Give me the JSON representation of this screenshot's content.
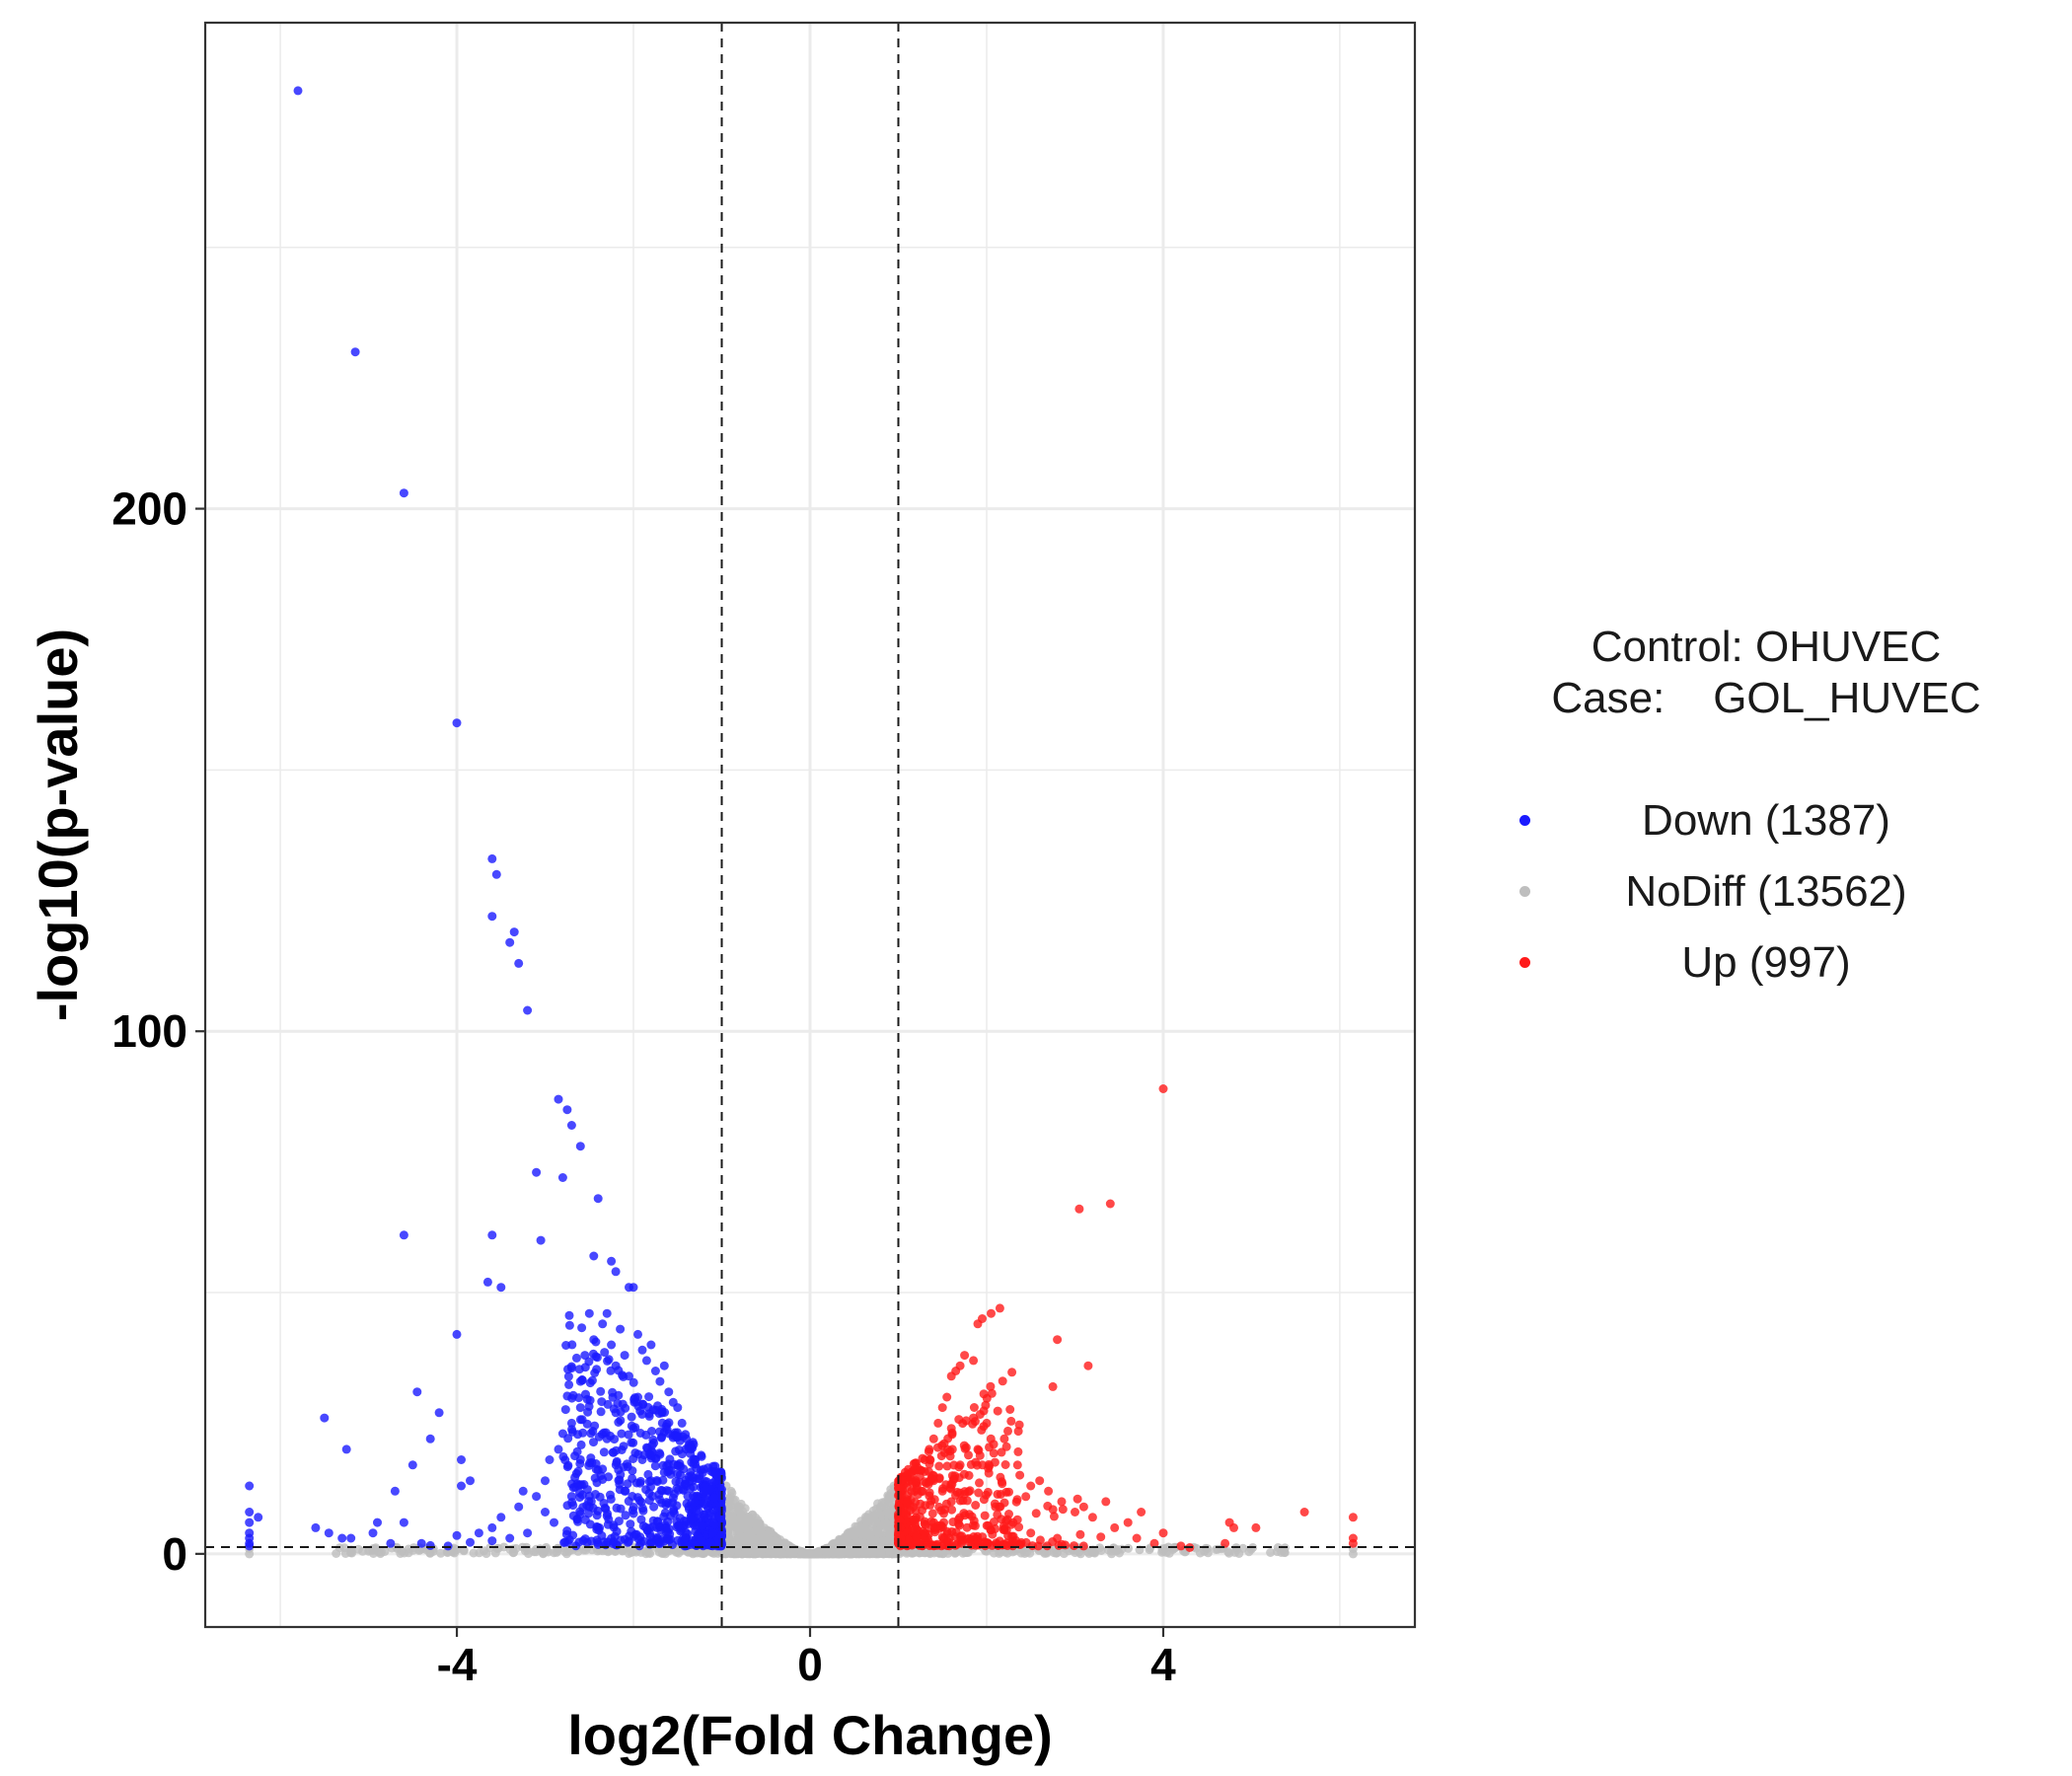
{
  "chart_data": {
    "type": "scatter",
    "title": "",
    "xlabel": "log2(Fold Change)",
    "ylabel": "-log10(p-value)",
    "xlim": [
      -6.85,
      6.85
    ],
    "ylim": [
      -14,
      293
    ],
    "xticks": [
      -4,
      0,
      4
    ],
    "xtick_labels": [
      "-4",
      "0",
      "4"
    ],
    "yticks": [
      0,
      100,
      200
    ],
    "ytick_labels": [
      "0",
      "100",
      "200"
    ],
    "grid": true,
    "threshold_lines": {
      "x": [
        -1,
        1
      ],
      "y": [
        1.3
      ]
    },
    "legend": {
      "title": "Control: OHUVEC\nCase:    GOL_HUVEC",
      "position": "right"
    },
    "series": [
      {
        "name": "Down (1387)",
        "color": "#1a1aff",
        "count": 1387,
        "points": [
          [
            -5.8,
            280
          ],
          [
            -5.15,
            230
          ],
          [
            -4.6,
            203
          ],
          [
            -4.0,
            159
          ],
          [
            -3.6,
            133
          ],
          [
            -3.55,
            130
          ],
          [
            -3.6,
            122
          ],
          [
            -3.35,
            119
          ],
          [
            -3.4,
            117
          ],
          [
            -3.3,
            113
          ],
          [
            -3.2,
            104
          ],
          [
            -2.85,
            87
          ],
          [
            -2.75,
            85
          ],
          [
            -2.7,
            82
          ],
          [
            -2.6,
            78
          ],
          [
            -3.1,
            73
          ],
          [
            -2.8,
            72
          ],
          [
            -2.4,
            68
          ],
          [
            -4.6,
            61
          ],
          [
            -3.6,
            61
          ],
          [
            -3.05,
            60
          ],
          [
            -2.45,
            57
          ],
          [
            -2.25,
            56
          ],
          [
            -2.2,
            54
          ],
          [
            -3.65,
            52
          ],
          [
            -3.5,
            51
          ],
          [
            -2.05,
            51
          ],
          [
            -2.0,
            51
          ],
          [
            -4.0,
            42
          ],
          [
            -5.5,
            26
          ],
          [
            -5.25,
            20
          ],
          [
            -4.45,
            31
          ],
          [
            -4.2,
            27
          ],
          [
            -4.3,
            22
          ],
          [
            -3.95,
            18
          ],
          [
            -3.85,
            14
          ],
          [
            -4.5,
            17
          ],
          [
            -3.95,
            13
          ],
          [
            -4.7,
            12
          ],
          [
            -6.35,
            13
          ],
          [
            -6.35,
            8
          ],
          [
            -6.35,
            6
          ],
          [
            -6.35,
            4
          ],
          [
            -6.35,
            3
          ],
          [
            -6.35,
            2
          ],
          [
            -6.35,
            1.5
          ],
          [
            -6.25,
            7
          ],
          [
            -5.6,
            5
          ],
          [
            -5.45,
            4
          ],
          [
            -5.3,
            3
          ],
          [
            -5.2,
            3
          ],
          [
            -4.9,
            6
          ],
          [
            -4.95,
            4
          ],
          [
            -4.75,
            2
          ],
          [
            -4.6,
            6
          ],
          [
            -4.4,
            2
          ],
          [
            -4.3,
            1.6
          ],
          [
            -4.1,
            1.5
          ],
          [
            -3.85,
            2.2
          ],
          [
            -3.75,
            4
          ],
          [
            -3.6,
            5
          ],
          [
            -3.5,
            7
          ],
          [
            -3.4,
            3
          ],
          [
            -3.3,
            9
          ],
          [
            -3.25,
            12
          ],
          [
            -3.1,
            11
          ],
          [
            -3.0,
            14
          ],
          [
            -2.95,
            18
          ],
          [
            -2.85,
            20
          ],
          [
            -2.8,
            23
          ],
          [
            -2.7,
            25
          ],
          [
            -2.6,
            28
          ],
          [
            -2.6,
            33
          ],
          [
            -2.55,
            38
          ],
          [
            -2.5,
            46
          ],
          [
            -2.45,
            41
          ],
          [
            -2.35,
            44
          ],
          [
            -2.3,
            46
          ],
          [
            -2.25,
            40
          ],
          [
            -2.2,
            36
          ],
          [
            -2.15,
            43
          ],
          [
            -2.1,
            38
          ],
          [
            -2.05,
            34
          ],
          [
            -1.95,
            42
          ],
          [
            -1.9,
            39
          ],
          [
            -1.85,
            37
          ],
          [
            -1.8,
            40
          ],
          [
            -1.75,
            35
          ],
          [
            -1.7,
            33
          ],
          [
            -1.65,
            36
          ],
          [
            -1.6,
            31
          ],
          [
            -1.55,
            29
          ],
          [
            -1.5,
            28
          ],
          [
            -1.45,
            25
          ],
          [
            -1.4,
            22
          ],
          [
            -1.35,
            20
          ],
          [
            -1.3,
            18
          ],
          [
            -1.25,
            15
          ],
          [
            -1.2,
            12
          ],
          [
            -1.15,
            9
          ],
          [
            -1.1,
            6
          ],
          [
            -1.05,
            3
          ],
          [
            -2.9,
            6
          ],
          [
            -3.0,
            8
          ],
          [
            -3.2,
            4
          ],
          [
            -3.6,
            2.5
          ],
          [
            -4.0,
            3.5
          ],
          [
            -2.7,
            11
          ],
          [
            -2.4,
            16
          ],
          [
            -2.3,
            22
          ],
          [
            -2.2,
            27
          ],
          [
            -2.0,
            24
          ],
          [
            -1.9,
            18
          ],
          [
            -1.8,
            14
          ],
          [
            -1.7,
            19
          ],
          [
            -1.6,
            23
          ],
          [
            -1.5,
            17
          ],
          [
            -1.4,
            13
          ],
          [
            -1.3,
            10
          ],
          [
            -1.2,
            7
          ],
          [
            -1.1,
            4
          ],
          [
            -2.5,
            9
          ],
          [
            -2.1,
            12
          ],
          [
            -1.95,
            30
          ],
          [
            -1.6,
            12
          ]
        ]
      },
      {
        "name": "NoDiff (13562)",
        "color": "#bebebe",
        "count": 13562,
        "points": [
          [
            -0.95,
            13
          ],
          [
            -0.9,
            11
          ],
          [
            -0.8,
            9
          ],
          [
            -0.7,
            7
          ],
          [
            -0.6,
            5
          ],
          [
            -0.5,
            3.5
          ],
          [
            -0.4,
            2.5
          ],
          [
            -0.3,
            1.5
          ],
          [
            -0.2,
            1
          ],
          [
            -0.1,
            0.5
          ],
          [
            0,
            0
          ],
          [
            0.1,
            0.5
          ],
          [
            0.2,
            1
          ],
          [
            0.3,
            1.5
          ],
          [
            0.4,
            2.5
          ],
          [
            0.5,
            3.5
          ],
          [
            0.6,
            5
          ],
          [
            0.7,
            7
          ],
          [
            0.8,
            9
          ],
          [
            0.9,
            11
          ],
          [
            0.95,
            13
          ],
          [
            -6.35,
            0
          ],
          [
            -6.35,
            1
          ],
          [
            -5.0,
            0.5
          ],
          [
            -4.0,
            0.8
          ],
          [
            -3.0,
            0.5
          ],
          [
            -2.0,
            0.6
          ],
          [
            -1.5,
            0.4
          ],
          [
            2.0,
            0.5
          ],
          [
            3.0,
            0.7
          ],
          [
            4.0,
            0.5
          ],
          [
            4.5,
            1
          ],
          [
            6.15,
            0
          ],
          [
            6.15,
            1
          ]
        ]
      },
      {
        "name": "Up (997)",
        "color": "#ff1a1a",
        "count": 997,
        "points": [
          [
            4.0,
            89
          ],
          [
            3.4,
            67
          ],
          [
            3.05,
            66
          ],
          [
            2.15,
            47
          ],
          [
            2.05,
            46
          ],
          [
            1.95,
            45
          ],
          [
            1.9,
            44
          ],
          [
            2.8,
            41
          ],
          [
            3.15,
            36
          ],
          [
            1.85,
            37
          ],
          [
            1.75,
            38
          ],
          [
            1.7,
            36
          ],
          [
            1.65,
            35
          ],
          [
            1.6,
            34
          ],
          [
            2.75,
            32
          ],
          [
            1.55,
            30
          ],
          [
            1.5,
            28
          ],
          [
            1.45,
            25
          ],
          [
            1.4,
            22
          ],
          [
            1.35,
            20
          ],
          [
            1.3,
            18
          ],
          [
            1.25,
            16
          ],
          [
            1.2,
            14
          ],
          [
            1.15,
            12
          ],
          [
            1.1,
            10
          ],
          [
            1.05,
            8
          ],
          [
            1.02,
            5
          ],
          [
            2.2,
            22
          ],
          [
            2.35,
            17
          ],
          [
            2.5,
            13
          ],
          [
            2.6,
            14
          ],
          [
            2.7,
            12
          ],
          [
            2.85,
            10
          ],
          [
            3.0,
            8
          ],
          [
            3.1,
            9
          ],
          [
            3.2,
            7
          ],
          [
            3.35,
            10
          ],
          [
            3.45,
            5
          ],
          [
            3.6,
            6
          ],
          [
            3.7,
            3
          ],
          [
            3.75,
            8
          ],
          [
            3.9,
            2
          ],
          [
            4.0,
            4
          ],
          [
            4.2,
            1.5
          ],
          [
            4.3,
            1.2
          ],
          [
            4.7,
            2
          ],
          [
            4.75,
            6
          ],
          [
            4.8,
            5
          ],
          [
            5.05,
            5
          ],
          [
            5.6,
            8
          ],
          [
            6.15,
            7
          ],
          [
            6.15,
            3
          ],
          [
            6.15,
            2
          ],
          [
            1.9,
            20
          ],
          [
            2.0,
            25
          ],
          [
            1.8,
            15
          ],
          [
            1.6,
            10
          ],
          [
            1.4,
            6
          ],
          [
            1.3,
            4
          ],
          [
            2.1,
            9
          ],
          [
            2.3,
            6
          ],
          [
            2.5,
            4
          ],
          [
            2.8,
            3
          ],
          [
            1.5,
            12
          ],
          [
            1.7,
            17
          ],
          [
            1.85,
            26
          ],
          [
            1.6,
            24
          ],
          [
            1.4,
            14
          ]
        ]
      }
    ]
  }
}
